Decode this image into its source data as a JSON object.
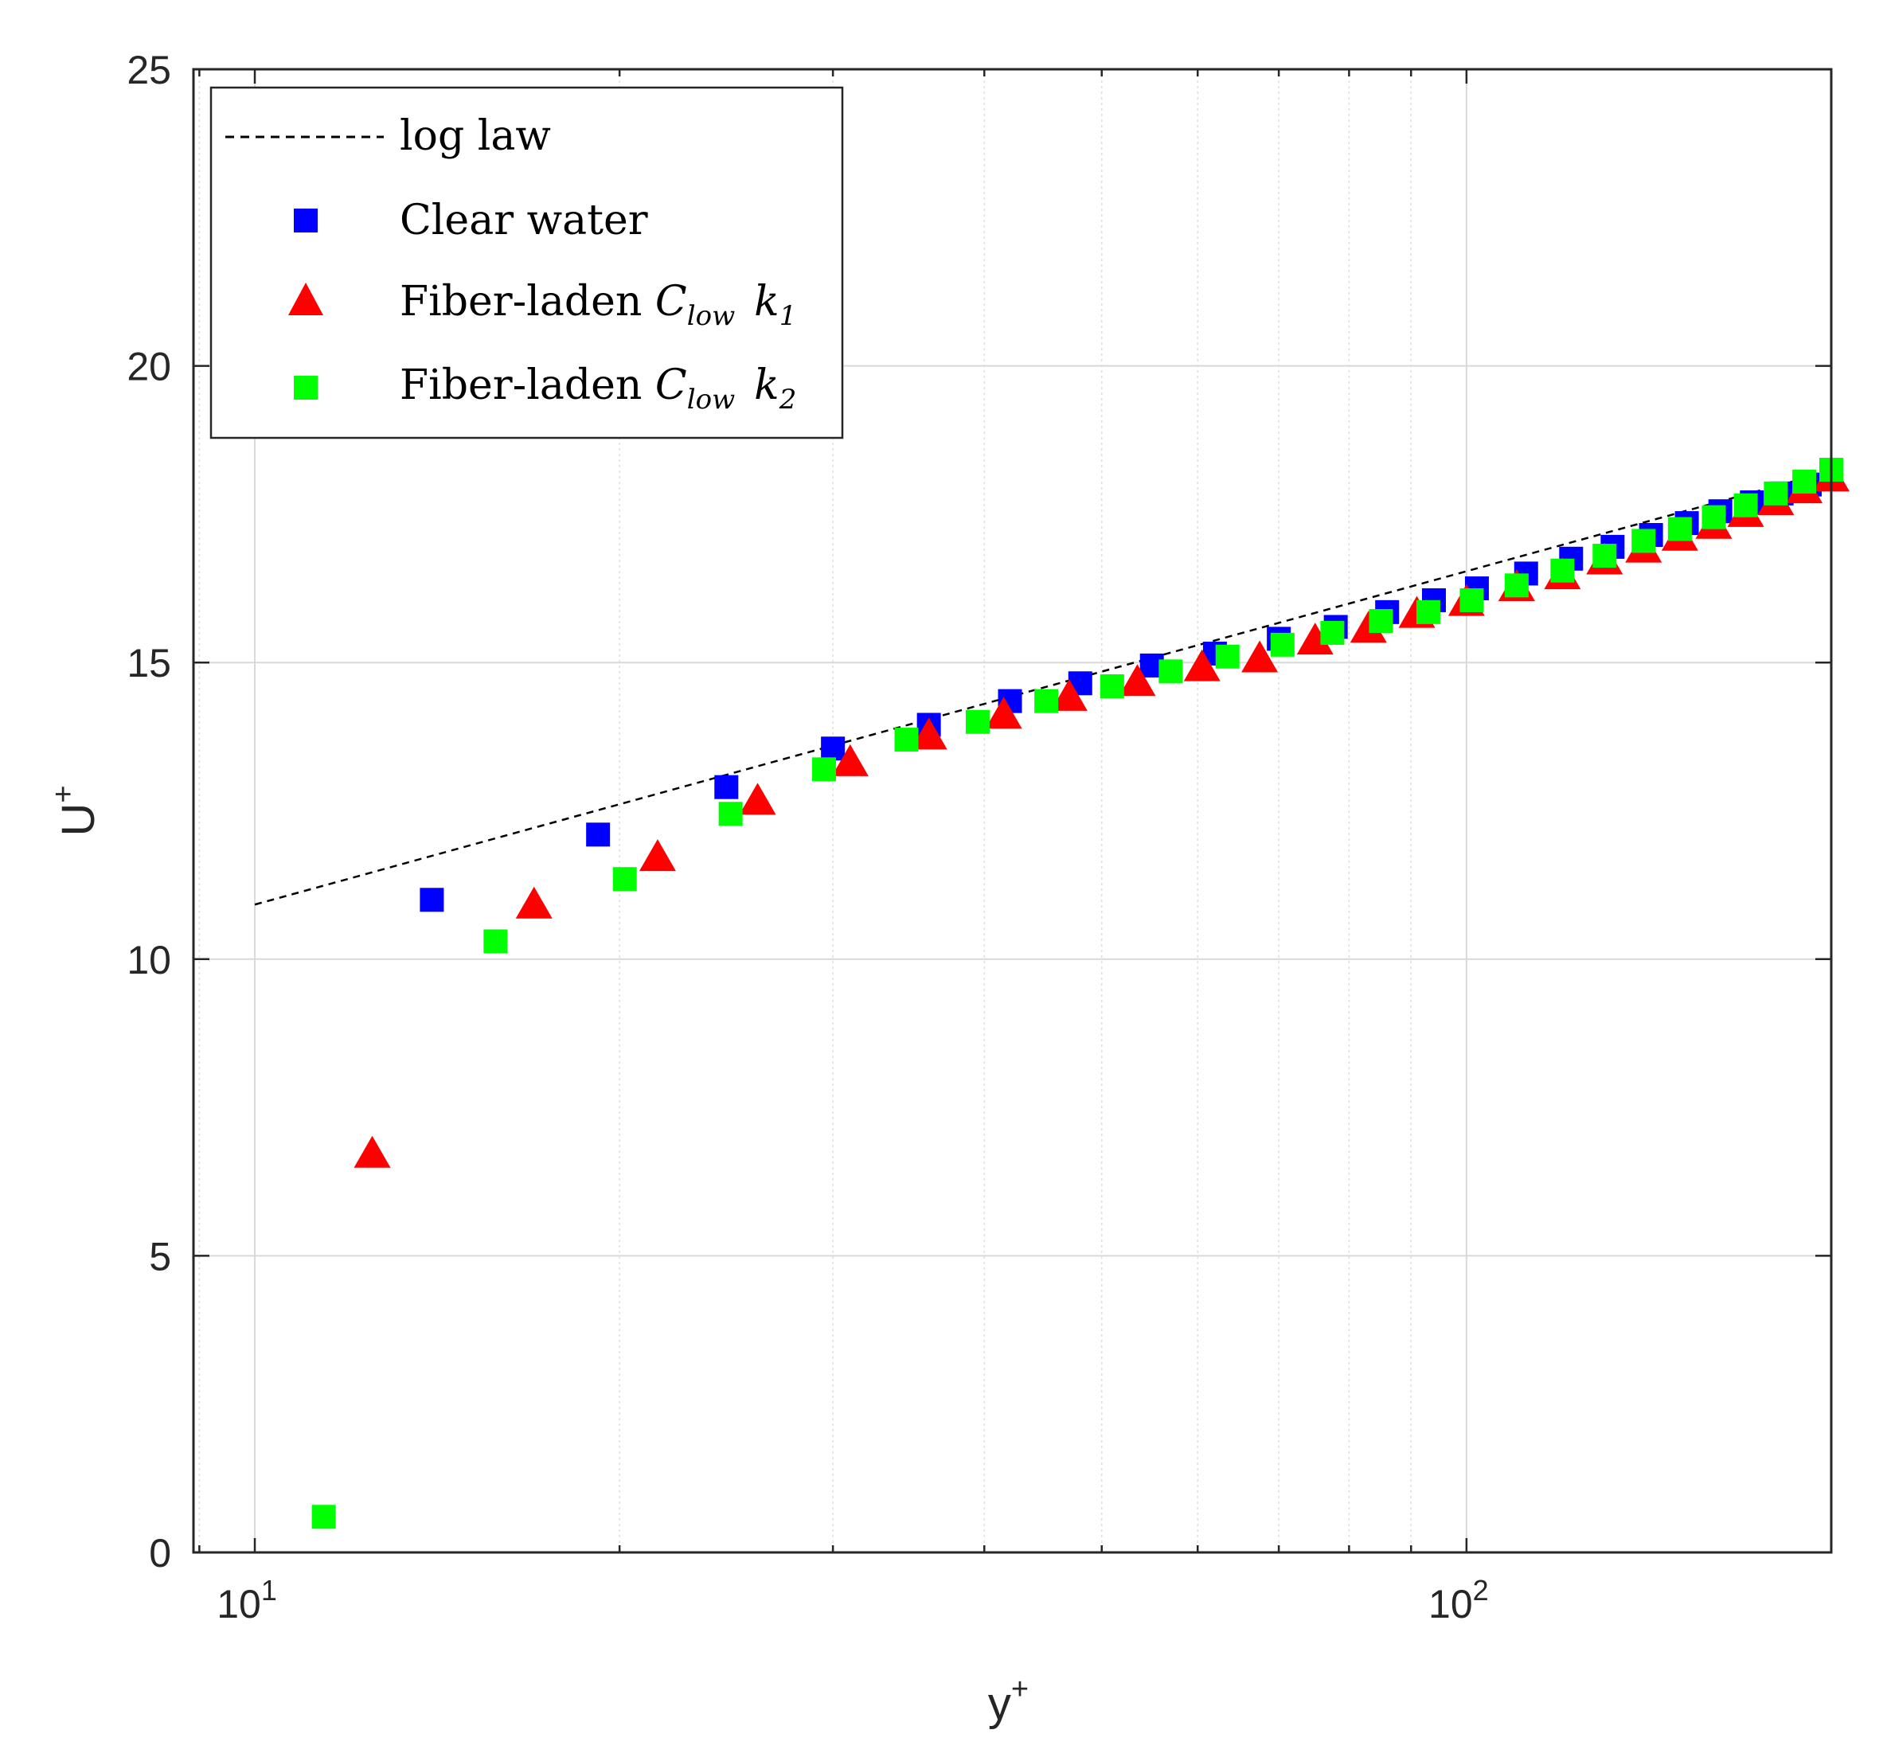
{
  "chart_data": {
    "type": "scatter",
    "xscale": "log",
    "xlim": [
      8.9,
      200
    ],
    "ylim": [
      0,
      25
    ],
    "xlabel": "y",
    "xlabel_sup": "+",
    "ylabel": "U",
    "ylabel_sup": "+",
    "x_ticks": [
      10,
      100
    ],
    "x_tick_labels": [
      {
        "base": "10",
        "exp": "1"
      },
      {
        "base": "10",
        "exp": "2"
      }
    ],
    "y_ticks": [
      0,
      5,
      10,
      15,
      20,
      25
    ],
    "y_tick_labels": [
      "0",
      "5",
      "10",
      "15",
      "20",
      "25"
    ],
    "grid": true,
    "legend_position": "top-left",
    "series": [
      {
        "name": "log law",
        "marker": "line-dashed",
        "color": "#000000",
        "x": [
          10,
          200
        ],
        "y": [
          10.92,
          18.23
        ]
      },
      {
        "name": "Clear water",
        "marker": "square",
        "color": "#0000ff",
        "x": [
          14.0,
          19.2,
          24.5,
          30.0,
          36.0,
          42.0,
          48.0,
          55.0,
          62.0,
          70.0,
          78.0,
          86.0,
          94.0,
          102.0,
          112.0,
          122.0,
          132.0,
          142.0,
          152.0,
          162.0,
          172.0,
          182.0,
          192.0,
          200.0
        ],
        "y": [
          11.0,
          12.1,
          12.9,
          13.55,
          13.95,
          14.35,
          14.65,
          14.95,
          15.15,
          15.4,
          15.6,
          15.85,
          16.05,
          16.25,
          16.5,
          16.75,
          16.95,
          17.15,
          17.35,
          17.55,
          17.7,
          17.85,
          18.0,
          18.1
        ]
      },
      {
        "name": "Fiber-laden C_low k_1",
        "name_parts": {
          "prefix": "Fiber-laden ",
          "c": "C",
          "c_sub": "low",
          "k": "k",
          "k_sub": "1"
        },
        "marker": "triangle",
        "color": "#ff0000",
        "x": [
          12.5,
          17.0,
          21.5,
          26.0,
          31.0,
          36.0,
          41.5,
          47.0,
          53.5,
          60.5,
          67.5,
          75.0,
          83.0,
          91.0,
          100.0,
          110.0,
          120.0,
          130.0,
          140.0,
          150.0,
          160.0,
          170.0,
          180.0,
          190.0,
          200.0
        ],
        "y": [
          6.7,
          10.9,
          11.7,
          12.65,
          13.3,
          13.75,
          14.1,
          14.4,
          14.65,
          14.9,
          15.05,
          15.35,
          15.55,
          15.8,
          16.0,
          16.25,
          16.45,
          16.7,
          16.9,
          17.1,
          17.3,
          17.5,
          17.7,
          17.9,
          18.1
        ]
      },
      {
        "name": "Fiber-laden C_low k_2",
        "name_parts": {
          "prefix": "Fiber-laden ",
          "c": "C",
          "c_sub": "low",
          "k": "k",
          "k_sub": "2"
        },
        "marker": "square",
        "color": "#00ff00",
        "x": [
          11.4,
          15.8,
          20.2,
          24.7,
          29.5,
          34.5,
          39.5,
          45.0,
          51.0,
          57.0,
          63.5,
          70.5,
          77.5,
          85.0,
          93.0,
          101.0,
          110.0,
          120.0,
          130.0,
          140.0,
          150.0,
          160.0,
          170.0,
          180.0,
          190.0,
          200.0
        ],
        "y": [
          0.6,
          10.3,
          11.35,
          12.45,
          13.2,
          13.7,
          14.0,
          14.35,
          14.6,
          14.85,
          15.1,
          15.3,
          15.5,
          15.7,
          15.85,
          16.05,
          16.3,
          16.55,
          16.8,
          17.05,
          17.25,
          17.45,
          17.65,
          17.85,
          18.05,
          18.25
        ]
      }
    ]
  }
}
